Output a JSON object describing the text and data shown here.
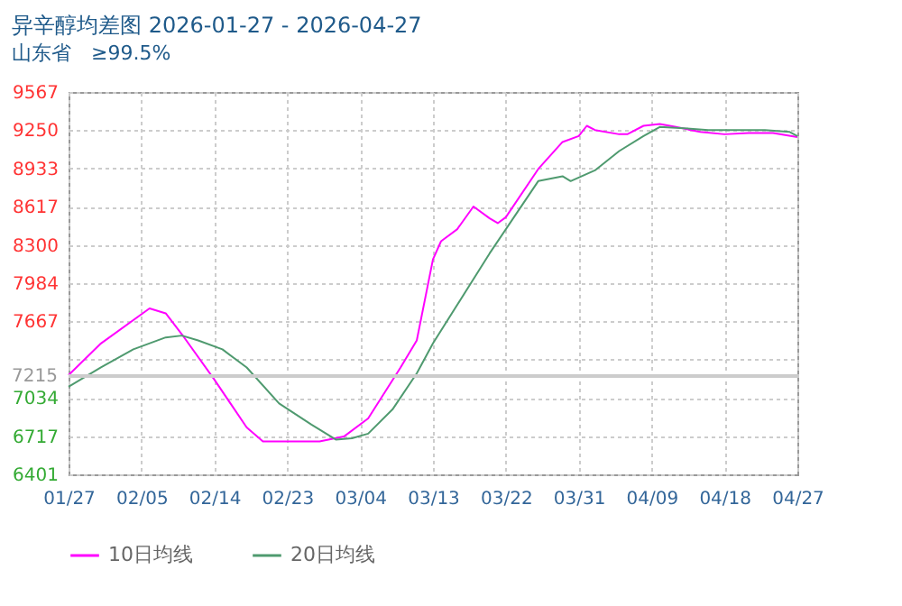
{
  "chart_data": {
    "type": "line",
    "title": "异辛醇均差图 2026-01-27 - 2026-04-27",
    "subtitle": "山东省　≥99.5%",
    "xlim": [
      "2026-01-27",
      "2026-04-27"
    ],
    "xticks": [
      {
        "value": "2026-01-27",
        "label": "01/27"
      },
      {
        "value": "2026-02-05",
        "label": "02/05"
      },
      {
        "value": "2026-02-14",
        "label": "02/14"
      },
      {
        "value": "2026-02-23",
        "label": "02/23"
      },
      {
        "value": "2026-03-04",
        "label": "03/04"
      },
      {
        "value": "2026-03-13",
        "label": "03/13"
      },
      {
        "value": "2026-03-22",
        "label": "03/22"
      },
      {
        "value": "2026-03-31",
        "label": "03/31"
      },
      {
        "value": "2026-04-09",
        "label": "04/09"
      },
      {
        "value": "2026-04-18",
        "label": "04/18"
      },
      {
        "value": "2026-04-27",
        "label": "04/27"
      }
    ],
    "ylim": [
      6401,
      9567
    ],
    "yticks": [
      6401,
      6717,
      7034,
      {
        "value": 7351,
        "label": null
      },
      7667,
      7984,
      8300,
      8617,
      8933,
      9250,
      9567
    ],
    "ref_lines": [
      {
        "axis": "y",
        "value": 7215,
        "label": "7215",
        "color": "#cccccc"
      }
    ],
    "grid": true,
    "legend": "bottom",
    "line_style": "solid",
    "marker": "none",
    "series": [
      {
        "name": "10日均线",
        "color": "#ff00ff",
        "x": [
          "2026-01-27",
          "2026-01-31",
          "2026-02-06",
          "2026-02-08",
          "2026-02-10",
          "2026-02-14",
          "2026-02-18",
          "2026-02-20",
          "2026-02-27",
          "2026-03-02",
          "2026-03-05",
          "2026-03-09",
          "2026-03-11",
          "2026-03-13",
          "2026-03-14",
          "2026-03-16",
          "2026-03-18",
          "2026-03-20",
          "2026-03-21",
          "2026-03-22",
          "2026-03-26",
          "2026-03-29",
          "2026-03-31",
          "2026-04-01",
          "2026-04-02",
          "2026-04-05",
          "2026-04-06",
          "2026-04-08",
          "2026-04-10",
          "2026-04-12",
          "2026-04-15",
          "2026-04-18",
          "2026-04-21",
          "2026-04-24",
          "2026-04-27"
        ],
        "values": [
          7222,
          7485,
          7775,
          7734,
          7560,
          7186,
          6789,
          6674,
          6674,
          6714,
          6864,
          7286,
          7510,
          8181,
          8331,
          8431,
          8619,
          8521,
          8481,
          8530,
          8929,
          9153,
          9202,
          9287,
          9252,
          9217,
          9217,
          9287,
          9302,
          9277,
          9237,
          9217,
          9227,
          9227,
          9193
        ]
      },
      {
        "name": "20日均线",
        "color": "#4f9a6f",
        "x": [
          "2026-01-27",
          "2026-01-31",
          "2026-02-04",
          "2026-02-08",
          "2026-02-10",
          "2026-02-12",
          "2026-02-15",
          "2026-02-18",
          "2026-02-22",
          "2026-02-26",
          "2026-03-01",
          "2026-03-03",
          "2026-03-05",
          "2026-03-08",
          "2026-03-11",
          "2026-03-13",
          "2026-03-20",
          "2026-03-23",
          "2026-03-26",
          "2026-03-29",
          "2026-03-30",
          "2026-04-02",
          "2026-04-05",
          "2026-04-08",
          "2026-04-10",
          "2026-04-13",
          "2026-04-16",
          "2026-04-19",
          "2026-04-23",
          "2026-04-26",
          "2026-04-27"
        ],
        "values": [
          7127,
          7286,
          7436,
          7535,
          7550,
          7510,
          7436,
          7286,
          6988,
          6813,
          6689,
          6700,
          6738,
          6938,
          7237,
          7485,
          8231,
          8530,
          8829,
          8869,
          8829,
          8918,
          9078,
          9202,
          9277,
          9267,
          9252,
          9252,
          9252,
          9237,
          9202
        ]
      }
    ]
  }
}
